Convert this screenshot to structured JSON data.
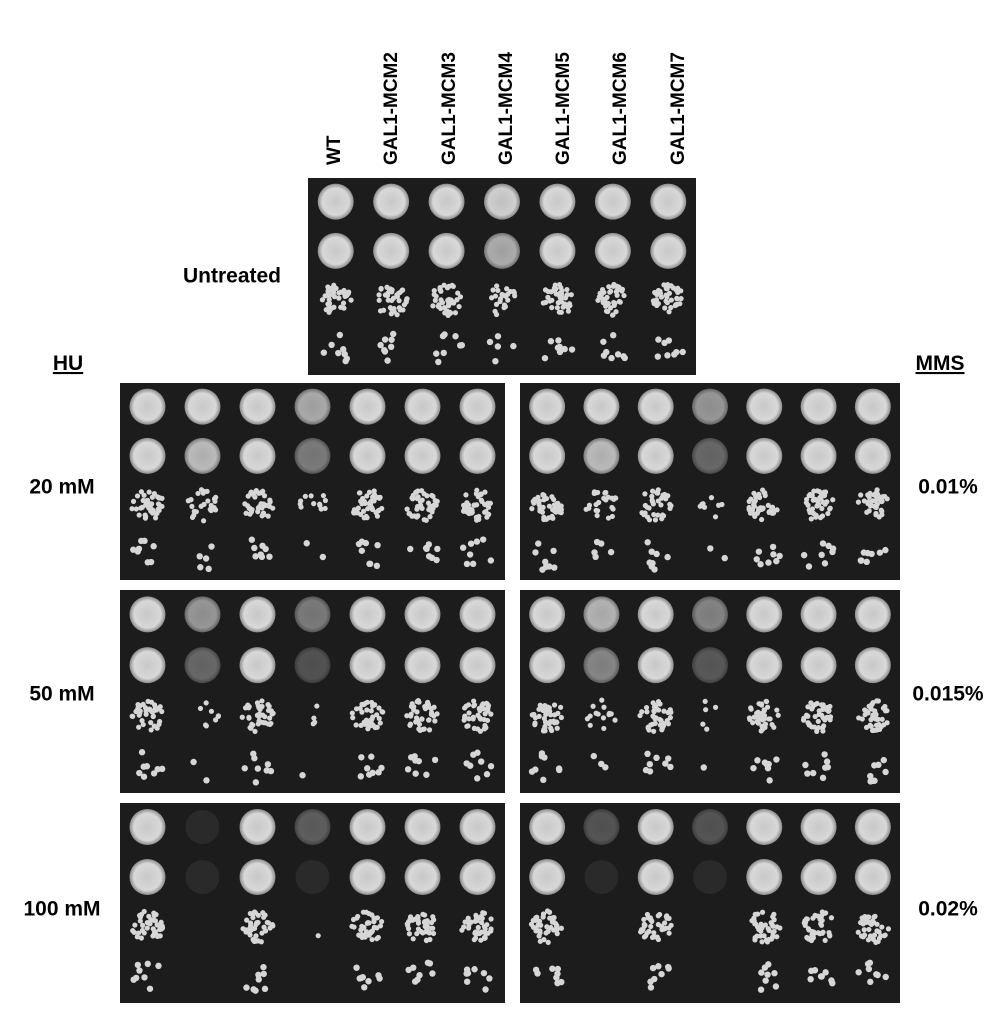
{
  "column_labels": [
    "WT",
    "GAL1-MCM2",
    "GAL1-MCM3",
    "GAL1-MCM4",
    "GAL1-MCM5",
    "GAL1-MCM6",
    "GAL1-MCM7"
  ],
  "untreated_label": "Untreated",
  "hu": {
    "title": "HU",
    "conditions": [
      "20 mM",
      "50 mM",
      "100 mM"
    ]
  },
  "mms": {
    "title": "MMS",
    "conditions": [
      "0.01%",
      "0.015%",
      "0.02%"
    ]
  }
}
